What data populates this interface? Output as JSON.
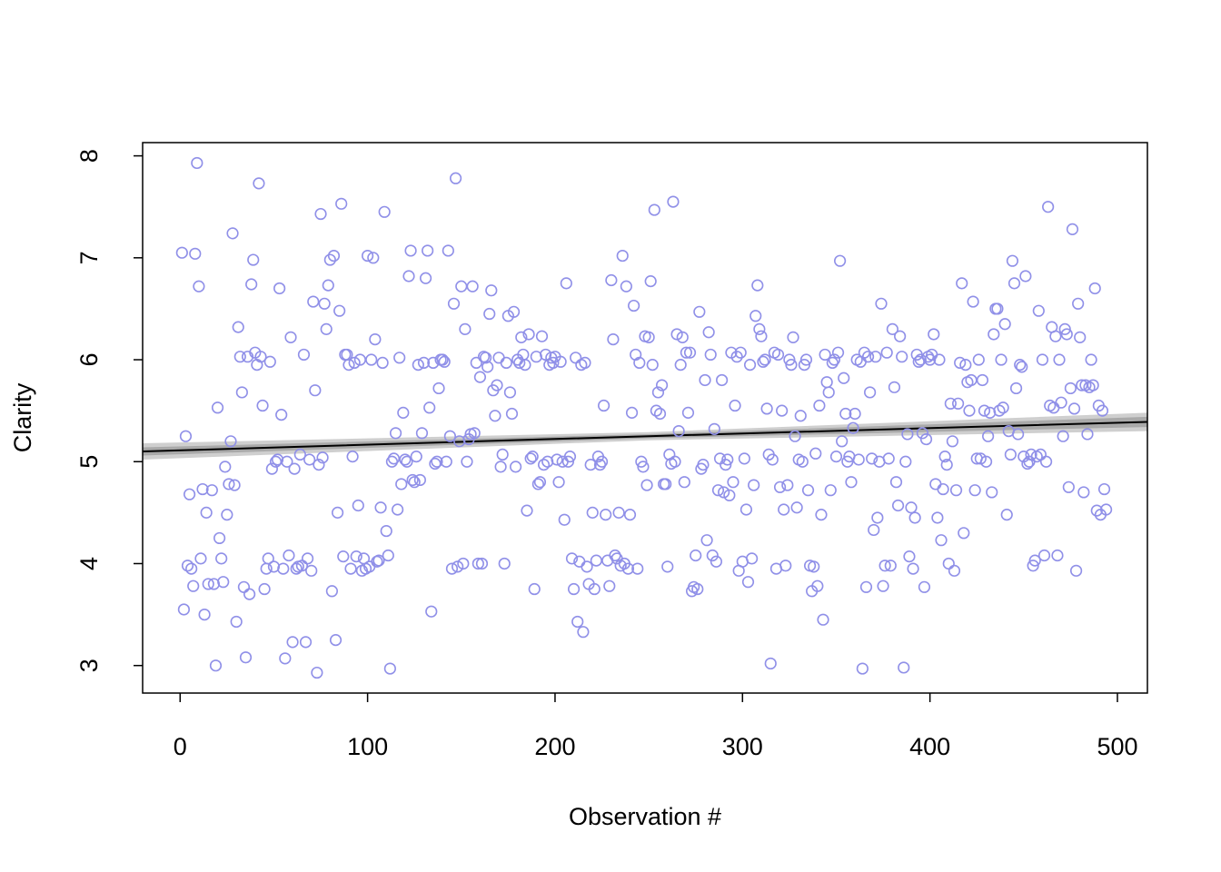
{
  "chart_data": {
    "type": "scatter",
    "x_label": "Observation #",
    "y_label": "Clarity",
    "xlim": [
      -20,
      516
    ],
    "ylim": [
      2.73,
      8.13
    ],
    "xticks": [
      0,
      100,
      200,
      300,
      400,
      500
    ],
    "yticks": [
      3,
      4,
      5,
      6,
      7,
      8
    ],
    "point_color": "#9090e8",
    "line_color": "#000000",
    "band_colors": [
      "#cfcfcf",
      "#a9a9a9"
    ],
    "fit": {
      "x": [
        -20,
        250,
        516
      ],
      "y": [
        5.1,
        5.25,
        5.39
      ],
      "outer_lower": [
        5.02,
        5.21,
        5.3
      ],
      "outer_upper": [
        5.18,
        5.29,
        5.48
      ],
      "inner_lower": [
        5.06,
        5.23,
        5.34
      ],
      "inner_upper": [
        5.14,
        5.27,
        5.44
      ]
    },
    "series": [
      {
        "name": "Clarity",
        "x": [
          1,
          2,
          3,
          4,
          5,
          6,
          7,
          8,
          9,
          10,
          11,
          12,
          13,
          14,
          15,
          17,
          18,
          19,
          20,
          21,
          22,
          23,
          24,
          25,
          26,
          27,
          28,
          29,
          30,
          31,
          32,
          33,
          34,
          35,
          36,
          37,
          38,
          39,
          40,
          41,
          42,
          43,
          44,
          45,
          46,
          47,
          48,
          49,
          50,
          51,
          52,
          53,
          54,
          55,
          56,
          57,
          58,
          59,
          60,
          61,
          62,
          63,
          64,
          65,
          66,
          67,
          68,
          69,
          70,
          71,
          72,
          73,
          74,
          75,
          76,
          77,
          78,
          79,
          80,
          81,
          82,
          83,
          84,
          85,
          86,
          87,
          88,
          89,
          90,
          91,
          92,
          93,
          94,
          95,
          96,
          97,
          98,
          99,
          100,
          101,
          102,
          103,
          104,
          105,
          106,
          107,
          108,
          109,
          110,
          111,
          112,
          113,
          114,
          115,
          116,
          117,
          118,
          119,
          120,
          121,
          122,
          123,
          124,
          125,
          126,
          127,
          128,
          129,
          130,
          131,
          132,
          133,
          134,
          135,
          136,
          137,
          138,
          139,
          140,
          141,
          142,
          143,
          144,
          145,
          146,
          147,
          148,
          149,
          150,
          151,
          152,
          153,
          154,
          155,
          156,
          157,
          158,
          159,
          160,
          161,
          162,
          163,
          164,
          165,
          166,
          167,
          168,
          169,
          170,
          171,
          172,
          173,
          174,
          175,
          176,
          177,
          178,
          179,
          180,
          181,
          182,
          183,
          184,
          185,
          186,
          187,
          188,
          189,
          190,
          191,
          192,
          193,
          194,
          195,
          196,
          197,
          198,
          199,
          200,
          201,
          202,
          203,
          204,
          205,
          206,
          207,
          208,
          209,
          210,
          211,
          212,
          213,
          214,
          215,
          216,
          217,
          218,
          219,
          220,
          221,
          222,
          223,
          224,
          225,
          226,
          227,
          228,
          229,
          230,
          231,
          232,
          233,
          234,
          235,
          236,
          237,
          238,
          239,
          240,
          241,
          242,
          243,
          244,
          245,
          246,
          247,
          248,
          249,
          250,
          251,
          252,
          253,
          254,
          255,
          256,
          257,
          258,
          259,
          260,
          261,
          262,
          263,
          264,
          265,
          266,
          267,
          268,
          269,
          270,
          271,
          272,
          273,
          274,
          275,
          276,
          277,
          278,
          279,
          280,
          281,
          282,
          283,
          284,
          285,
          286,
          287,
          288,
          289,
          290,
          291,
          292,
          293,
          294,
          295,
          296,
          297,
          298,
          299,
          300,
          301,
          302,
          303,
          304,
          305,
          306,
          307,
          308,
          309,
          310,
          311,
          312,
          313,
          314,
          315,
          316,
          317,
          318,
          319,
          320,
          321,
          322,
          323,
          324,
          325,
          326,
          327,
          328,
          329,
          330,
          331,
          332,
          333,
          334,
          335,
          336,
          337,
          338,
          339,
          340,
          341,
          342,
          343,
          344,
          345,
          346,
          347,
          348,
          349,
          350,
          351,
          352,
          353,
          354,
          355,
          356,
          357,
          358,
          359,
          360,
          361,
          362,
          363,
          364,
          365,
          366,
          367,
          368,
          369,
          370,
          371,
          372,
          373,
          374,
          375,
          376,
          377,
          378,
          379,
          380,
          381,
          382,
          383,
          384,
          385,
          386,
          387,
          388,
          389,
          390,
          391,
          392,
          393,
          394,
          395,
          396,
          397,
          398,
          399,
          400,
          401,
          402,
          403,
          404,
          405,
          406,
          407,
          408,
          409,
          410,
          411,
          412,
          413,
          414,
          415,
          416,
          417,
          418,
          419,
          420,
          421,
          422,
          423,
          424,
          425,
          426,
          427,
          428,
          429,
          430,
          431,
          432,
          433,
          434,
          435,
          436,
          437,
          438,
          439,
          440,
          441,
          442,
          443,
          444,
          445,
          446,
          447,
          448,
          449,
          450,
          451,
          452,
          453,
          454,
          455,
          456,
          457,
          458,
          459,
          460,
          461,
          462,
          463,
          464,
          465,
          466,
          467,
          468,
          469,
          470,
          471,
          472,
          473,
          474,
          475,
          476,
          477,
          478,
          479,
          480,
          481,
          482,
          483,
          484,
          485,
          486,
          487,
          488,
          489,
          490,
          491,
          492,
          493,
          494
        ],
        "values": [
          7.05,
          3.55,
          5.25,
          3.98,
          4.68,
          3.95,
          3.78,
          7.04,
          7.93,
          6.72,
          4.05,
          4.73,
          3.5,
          4.5,
          3.8,
          4.72,
          3.8,
          3.0,
          5.53,
          4.25,
          4.05,
          3.82,
          4.95,
          4.48,
          4.78,
          5.2,
          7.24,
          4.77,
          3.43,
          6.32,
          6.03,
          5.68,
          3.77,
          3.08,
          6.03,
          3.7,
          6.74,
          6.98,
          6.07,
          5.95,
          7.73,
          6.03,
          5.55,
          3.75,
          3.95,
          4.05,
          5.98,
          4.93,
          3.97,
          5.0,
          5.02,
          6.7,
          5.46,
          3.95,
          3.07,
          5.0,
          4.08,
          6.22,
          3.23,
          4.93,
          3.95,
          3.97,
          5.07,
          3.98,
          6.05,
          3.23,
          4.05,
          5.02,
          3.93,
          6.57,
          5.7,
          2.93,
          4.97,
          7.43,
          5.04,
          6.55,
          6.3,
          6.73,
          6.98,
          3.73,
          7.02,
          3.25,
          4.5,
          6.48,
          7.53,
          4.07,
          6.05,
          6.05,
          5.95,
          3.95,
          5.05,
          5.97,
          4.07,
          4.57,
          6.0,
          3.93,
          4.05,
          3.95,
          7.02,
          3.97,
          6.0,
          7.0,
          6.2,
          4.02,
          4.03,
          4.55,
          5.97,
          7.45,
          4.32,
          4.08,
          2.97,
          5.0,
          5.03,
          5.28,
          4.53,
          6.02,
          4.78,
          5.48,
          5.02,
          5.0,
          6.82,
          7.07,
          4.82,
          4.8,
          5.05,
          5.95,
          4.82,
          5.28,
          5.97,
          6.8,
          7.07,
          5.53,
          3.53,
          5.97,
          4.98,
          5.0,
          5.72,
          6.0,
          6.0,
          5.98,
          5.0,
          7.07,
          5.25,
          3.95,
          6.55,
          7.78,
          3.97,
          5.2,
          6.72,
          4.0,
          6.3,
          5.0,
          5.22,
          5.27,
          6.72,
          5.28,
          5.97,
          4.0,
          5.83,
          4.0,
          6.03,
          6.02,
          5.93,
          6.45,
          6.68,
          5.7,
          5.45,
          5.75,
          6.02,
          4.95,
          5.07,
          4.0,
          5.97,
          6.43,
          5.68,
          5.47,
          6.47,
          4.95,
          6.0,
          5.97,
          6.22,
          6.05,
          5.95,
          4.52,
          6.25,
          5.03,
          5.05,
          3.75,
          6.03,
          4.78,
          4.8,
          6.23,
          4.97,
          6.05,
          5.0,
          5.95,
          6.02,
          5.97,
          6.03,
          5.02,
          4.8,
          5.98,
          5.0,
          4.43,
          6.75,
          5.0,
          5.05,
          4.05,
          3.75,
          6.02,
          3.43,
          4.02,
          5.95,
          3.33,
          5.97,
          3.97,
          3.8,
          4.97,
          4.5,
          3.75,
          4.03,
          5.05,
          4.97,
          5.0,
          5.55,
          4.48,
          4.03,
          3.78,
          6.78,
          6.2,
          4.08,
          4.05,
          4.5,
          3.98,
          7.02,
          4.0,
          6.72,
          3.95,
          4.48,
          5.48,
          6.53,
          6.05,
          3.95,
          5.97,
          5.0,
          4.95,
          6.23,
          4.77,
          6.22,
          6.77,
          5.95,
          7.47,
          5.5,
          5.68,
          5.47,
          5.75,
          4.78,
          4.78,
          3.97,
          5.07,
          4.98,
          7.55,
          5.0,
          6.25,
          5.3,
          5.95,
          6.22,
          4.8,
          6.07,
          5.48,
          6.07,
          3.73,
          3.77,
          4.08,
          3.75,
          6.47,
          4.93,
          4.97,
          5.8,
          4.23,
          6.27,
          6.05,
          4.08,
          5.32,
          4.02,
          4.72,
          5.03,
          5.8,
          4.7,
          4.97,
          5.02,
          4.67,
          6.07,
          4.8,
          5.55,
          6.03,
          3.93,
          6.07,
          4.02,
          5.03,
          4.53,
          3.82,
          5.95,
          4.05,
          4.77,
          6.43,
          6.73,
          6.3,
          6.23,
          5.98,
          6.0,
          5.52,
          5.07,
          3.02,
          5.02,
          6.07,
          3.95,
          6.05,
          4.75,
          5.5,
          4.53,
          3.98,
          4.77,
          6.0,
          5.95,
          6.22,
          5.25,
          4.55,
          5.02,
          5.45,
          5.0,
          5.95,
          6.0,
          4.72,
          3.98,
          3.73,
          3.97,
          5.08,
          3.78,
          5.55,
          4.48,
          3.45,
          6.05,
          5.78,
          5.68,
          4.72,
          5.97,
          6.0,
          5.05,
          6.07,
          6.97,
          5.2,
          5.82,
          5.47,
          5.0,
          5.05,
          4.8,
          5.33,
          5.47,
          6.0,
          5.02,
          5.98,
          2.97,
          6.07,
          3.77,
          6.03,
          5.68,
          5.03,
          4.33,
          6.03,
          4.45,
          5.0,
          6.55,
          3.78,
          3.98,
          6.07,
          5.03,
          3.98,
          6.3,
          5.73,
          4.8,
          4.57,
          6.23,
          6.03,
          2.98,
          5.0,
          5.27,
          4.07,
          4.55,
          3.95,
          4.45,
          6.05,
          5.98,
          6.0,
          5.28,
          3.77,
          5.22,
          6.03,
          6.0,
          6.05,
          6.25,
          4.78,
          4.45,
          6.0,
          4.23,
          4.73,
          5.05,
          4.97,
          4.0,
          5.57,
          5.2,
          3.93,
          4.72,
          5.57,
          5.97,
          6.75,
          4.3,
          5.95,
          5.78,
          5.5,
          5.8,
          6.57,
          4.72,
          5.03,
          6.0,
          5.03,
          5.8,
          5.5,
          5.0,
          5.25,
          5.48,
          4.7,
          6.25,
          6.5,
          6.5,
          5.5,
          6.0,
          5.53,
          6.35,
          4.48,
          5.3,
          5.07,
          6.97,
          6.75,
          5.72,
          5.27,
          5.95,
          5.93,
          5.05,
          6.82,
          4.98,
          5.0,
          5.07,
          3.98,
          4.03,
          5.05,
          6.48,
          5.07,
          6.0,
          4.08,
          5.0,
          7.5,
          5.55,
          6.32,
          5.53,
          6.23,
          4.08,
          6.0,
          5.58,
          5.25,
          6.3,
          6.25,
          4.75,
          5.72,
          7.28,
          5.52,
          3.93,
          6.55,
          6.22,
          5.75,
          4.7,
          5.75,
          5.27,
          5.73,
          6.0,
          5.75,
          6.7,
          4.52,
          5.55,
          4.48,
          5.5,
          4.73,
          4.53
        ]
      }
    ]
  }
}
